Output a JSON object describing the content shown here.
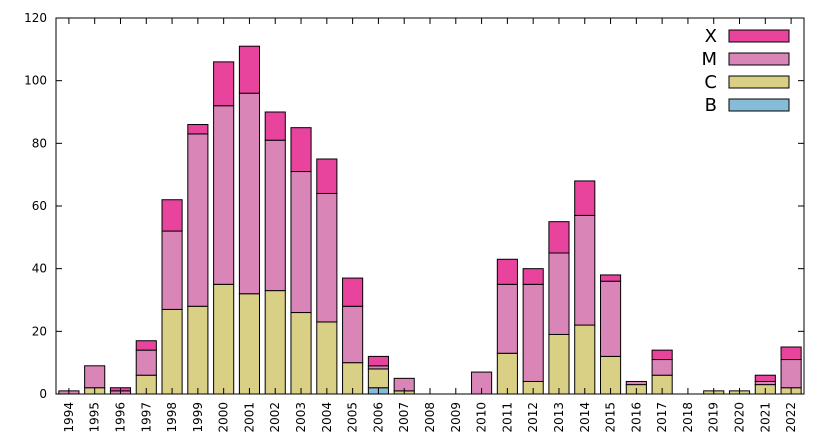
{
  "chart_data": {
    "type": "bar",
    "stacked": true,
    "title": "",
    "xlabel": "",
    "ylabel": "",
    "ylim": [
      0,
      120
    ],
    "yticks": [
      0,
      20,
      40,
      60,
      80,
      100,
      120
    ],
    "legend_position": "top-right",
    "categories": [
      "1994",
      "1995",
      "1996",
      "1997",
      "1998",
      "1999",
      "2000",
      "2001",
      "2002",
      "2003",
      "2004",
      "2005",
      "2006",
      "2007",
      "2008",
      "2009",
      "2010",
      "2011",
      "2012",
      "2013",
      "2014",
      "2015",
      "2016",
      "2017",
      "2018",
      "2019",
      "2020",
      "2021",
      "2022"
    ],
    "series": [
      {
        "name": "B",
        "color": "#87bcd8",
        "values": [
          0,
          0,
          0,
          0,
          0,
          0,
          0,
          0,
          0,
          0,
          0,
          0,
          2,
          0,
          0,
          0,
          0,
          0,
          0,
          0,
          0,
          0,
          0,
          0,
          0,
          0,
          0,
          0,
          0
        ]
      },
      {
        "name": "C",
        "color": "#d9cf85",
        "values": [
          0,
          2,
          0,
          6,
          27,
          28,
          35,
          32,
          33,
          26,
          23,
          10,
          6,
          1,
          0,
          0,
          0,
          13,
          4,
          19,
          22,
          12,
          3,
          6,
          0,
          1,
          1,
          3,
          2
        ]
      },
      {
        "name": "M",
        "color": "#da85b8",
        "values": [
          1,
          7,
          1,
          8,
          25,
          55,
          57,
          64,
          48,
          45,
          41,
          18,
          1,
          4,
          0,
          0,
          7,
          22,
          31,
          26,
          35,
          24,
          1,
          5,
          0,
          0,
          0,
          1,
          9
        ]
      },
      {
        "name": "X",
        "color": "#e8449e",
        "values": [
          0,
          0,
          1,
          3,
          10,
          3,
          14,
          15,
          9,
          14,
          11,
          9,
          3,
          0,
          0,
          0,
          0,
          8,
          5,
          10,
          11,
          2,
          0,
          3,
          0,
          0,
          0,
          2,
          4
        ]
      }
    ]
  }
}
